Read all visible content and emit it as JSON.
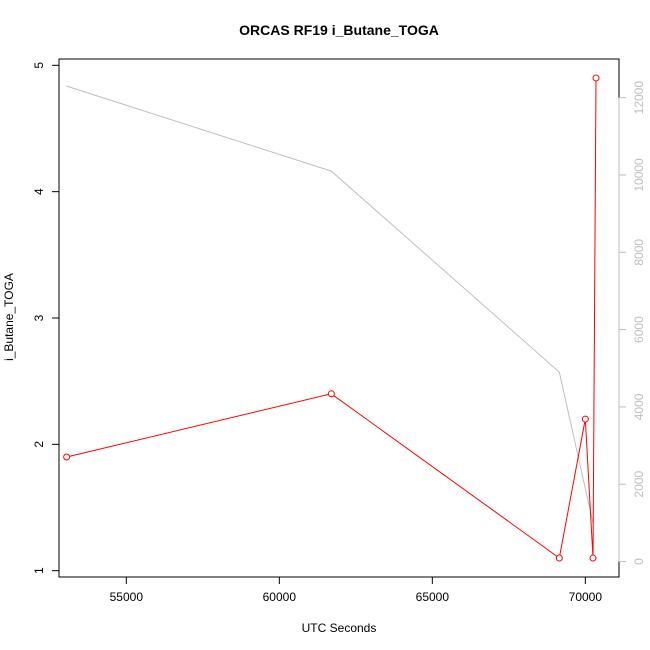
{
  "chart_data": {
    "type": "line",
    "title": "ORCAS RF19 i_Butane_TOGA",
    "xlabel": "UTC Seconds",
    "ylabel": "i_Butane_TOGA",
    "xlim": [
      52800,
      71100
    ],
    "ylim": [
      0.95,
      5.05
    ],
    "y2lim": [
      -400,
      13000
    ],
    "x_ticks": [
      55000,
      60000,
      65000,
      70000
    ],
    "y_ticks": [
      1,
      2,
      3,
      4,
      5
    ],
    "y2_ticks": [
      0,
      2000,
      4000,
      6000,
      8000,
      10000,
      12000
    ],
    "grid": false,
    "colors": {
      "primary": "#ff0000",
      "secondary": "#bebebe",
      "axis": "#000000"
    },
    "series": [
      {
        "axis": "left",
        "marker": "open-circle",
        "x": [
          53050,
          61700,
          69150,
          70000,
          70250,
          70350
        ],
        "y": [
          1.9,
          2.4,
          1.1,
          2.2,
          1.1,
          4.9
        ]
      },
      {
        "axis": "right",
        "marker": "none",
        "x": [
          53050,
          61700,
          69150,
          70250
        ],
        "y": [
          12300,
          10100,
          4900,
          1000
        ]
      }
    ]
  }
}
